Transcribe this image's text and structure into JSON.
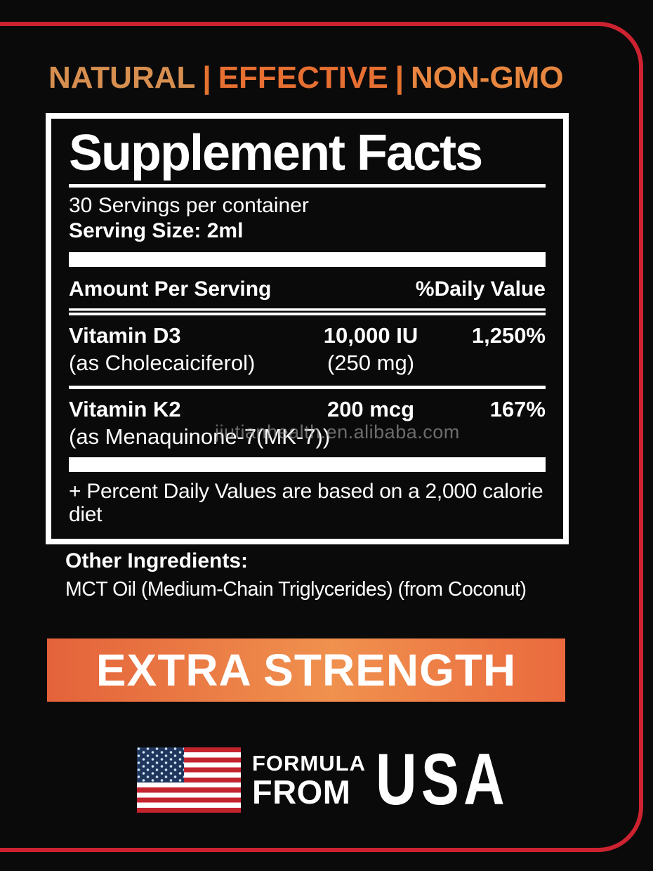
{
  "colors": {
    "background": "#0a0a0b",
    "frame_red": "#cd2330",
    "tagline_orange": "#e4732f",
    "banner_gradient_left": "#e4623a",
    "banner_gradient_mid": "#f0914e",
    "banner_gradient_right": "#ea6a3e",
    "flag_red": "#c3242e",
    "flag_blue": "#20365c",
    "text_white": "#ffffff",
    "watermark_gray": "#a9a9a9"
  },
  "tagline": {
    "segments": [
      "NATURAL",
      "EFFECTIVE",
      "NON-GMO"
    ],
    "separator": "|"
  },
  "supplement_facts": {
    "title": "Supplement Facts",
    "servings_per_container": "30 Servings per container",
    "serving_size": "Serving Size: 2ml",
    "column_headers": {
      "amount": "Amount Per Serving",
      "daily_value": "%Daily Value"
    },
    "nutrients": [
      {
        "name": "Vitamin D3",
        "amount": "10,000 IU",
        "daily_value": "1,250%",
        "source": "(as Cholecaiciferol)",
        "source_amount": "(250 mg)"
      },
      {
        "name": "Vitamin K2",
        "amount": "200 mcg",
        "daily_value": "167%",
        "source": "(as Menaquinone-7(MK-7))",
        "source_amount": ""
      }
    ],
    "footnote": "+ Percent Daily Values are based on a 2,000 calorie diet"
  },
  "other_ingredients": {
    "label": "Other Ingredients:",
    "value": "MCT Oil (Medium-Chain Triglycerides) (from Coconut)"
  },
  "banner": {
    "text": "EXTRA STRENGTH"
  },
  "origin": {
    "formula": "FORMULA",
    "from": "FROM",
    "country": "USA"
  },
  "watermark": "jiutianhealth.en.alibaba.com"
}
